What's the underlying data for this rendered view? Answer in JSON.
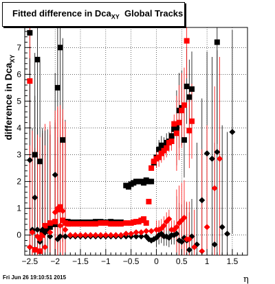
{
  "chart_data": {
    "type": "scatter",
    "title": "Fitted difference in Dca",
    "title_sub": "XY",
    "title_suffix": "Global Tracks",
    "ylabel": "difference in Dca",
    "ylabel_sub": "XY",
    "xlabel": "η",
    "xlim": [
      -2.6,
      1.8
    ],
    "ylim": [
      -0.75,
      7.75
    ],
    "grid": true,
    "x_ticks": [
      -2.5,
      -2,
      -1.5,
      -1,
      -0.5,
      0,
      0.5,
      1,
      1.5
    ],
    "x_tick_labels": [
      "−2.5",
      "−2",
      "−1.5",
      "−1",
      "−0.5",
      "0",
      "0.5",
      "1",
      "1.5"
    ],
    "y_ticks": [
      0,
      1,
      2,
      3,
      4,
      5,
      6,
      7
    ],
    "y_tick_labels": [
      "0",
      "1",
      "2",
      "3",
      "4",
      "5",
      "6",
      "7"
    ],
    "footer": "Fri Jun 26 19:10:51 2015",
    "series": [
      {
        "marker": "square",
        "color": "#000000",
        "x": [
          -2.5,
          -2.4,
          -2.35,
          -2.3,
          -2.25,
          -2.2,
          -2.1,
          -2.0,
          -1.95,
          -1.9,
          -1.85,
          -1.8,
          -1.75,
          -1.7,
          -1.6,
          -1.5,
          -1.4,
          -1.3,
          -1.2,
          -1.1,
          -1.0,
          -0.9,
          -0.8,
          -0.7,
          -0.6,
          -0.55,
          -0.5,
          -0.45,
          -0.4,
          -0.35,
          -0.3,
          -0.25,
          -0.2,
          -0.15,
          -0.1,
          -0.05,
          0.0,
          0.05,
          0.1,
          0.15,
          0.2,
          0.25,
          0.3,
          0.35,
          0.4,
          0.45,
          0.5,
          0.55,
          0.6,
          0.65,
          0.7,
          1.2
        ],
        "y": [
          7.55,
          3.0,
          6.55,
          2.75,
          0.1,
          0.15,
          0.3,
          0.4,
          5.5,
          7.0,
          3.55,
          0.5,
          0.5,
          0.48,
          0.48,
          0.48,
          0.48,
          0.48,
          0.5,
          0.5,
          0.48,
          0.5,
          0.48,
          0.48,
          1.85,
          1.8,
          1.9,
          1.95,
          2.0,
          2.0,
          2.0,
          1.95,
          2.05,
          2.0,
          2.0,
          2.7,
          2.9,
          3.2,
          3.35,
          3.3,
          3.45,
          3.5,
          3.7,
          3.95,
          4.0,
          4.65,
          4.75,
          3.55,
          5.55,
          5.15,
          5.45,
          7.2
        ]
      },
      {
        "marker": "square",
        "color": "#ff0000",
        "x": [
          -2.5,
          -2.4,
          -2.3,
          -2.25,
          -2.2,
          -2.1,
          -2.0,
          -1.95,
          -1.9,
          -1.85,
          -1.8,
          -1.75,
          -1.7,
          -1.6,
          -1.5,
          -1.4,
          -1.3,
          -1.2,
          -1.1,
          -1.0,
          -0.9,
          -0.8,
          -0.7,
          -0.6,
          -0.5,
          -0.45,
          -0.4,
          -0.35,
          -0.3,
          -0.25,
          -0.2,
          -0.15,
          -0.1,
          -0.05,
          0.0,
          0.05,
          0.1,
          0.15,
          0.2,
          0.25,
          0.3,
          0.35,
          0.4,
          0.45,
          0.5,
          0.55,
          0.6,
          0.65,
          0.7
        ],
        "y": [
          5.75,
          -0.55,
          -0.6,
          0.0,
          0.35,
          0.45,
          0.5,
          0.95,
          1.05,
          0.55,
          0.45,
          0.42,
          0.42,
          0.42,
          0.42,
          0.42,
          0.42,
          0.42,
          0.45,
          0.45,
          0.42,
          0.42,
          0.42,
          0.45,
          0.45,
          0.48,
          0.5,
          0.5,
          0.55,
          0.6,
          0.45,
          1.25,
          2.5,
          2.75,
          2.85,
          2.9,
          3.05,
          3.15,
          3.25,
          3.45,
          3.5,
          4.15,
          3.8,
          4.2,
          4.65,
          4.85,
          7.25,
          3.9,
          4.25
        ]
      },
      {
        "marker": "diamond",
        "color": "#000000",
        "x": [
          -2.5,
          -2.45,
          -2.4,
          -2.35,
          -2.3,
          -2.25,
          -2.2,
          -2.15,
          -2.1,
          -2.0,
          -1.95,
          -1.9,
          -1.8,
          -1.7,
          -1.6,
          -1.5,
          -1.4,
          -1.3,
          -1.2,
          -1.1,
          -1.0,
          -0.9,
          -0.8,
          -0.7,
          -0.6,
          -0.5,
          -0.4,
          -0.3,
          -0.2,
          -0.15,
          -0.1,
          -0.05,
          0.0,
          0.05,
          0.1,
          0.15,
          0.2,
          0.25,
          0.3,
          0.35,
          0.4,
          0.45,
          0.5,
          0.55,
          0.6,
          0.65,
          0.7,
          0.8,
          0.9,
          1.0,
          1.1,
          1.15,
          1.2,
          1.3,
          1.4,
          1.5
        ],
        "y": [
          2.8,
          0.2,
          1.4,
          0.2,
          -0.25,
          0.2,
          0.1,
          0.15,
          -0.05,
          2.25,
          -0.15,
          -0.05,
          -0.05,
          -0.05,
          -0.05,
          -0.05,
          -0.05,
          -0.05,
          -0.05,
          -0.05,
          -0.05,
          -0.05,
          -0.05,
          -0.05,
          -0.05,
          -0.05,
          -0.05,
          -0.05,
          -0.05,
          -0.15,
          -0.2,
          -0.15,
          -0.1,
          0.0,
          0.05,
          -0.05,
          -0.05,
          -0.1,
          0.0,
          0.0,
          0.05,
          -0.2,
          -0.25,
          -0.1,
          -0.2,
          -0.55,
          -0.05,
          -0.35,
          1.3,
          3.05,
          2.85,
          -0.35,
          3.1,
          0.3,
          0.05,
          3.85
        ]
      },
      {
        "marker": "diamond",
        "color": "#ff0000",
        "x": [
          -2.5,
          -2.45,
          -2.35,
          -2.3,
          -2.2,
          -2.1,
          -2.0,
          -1.95,
          -1.9,
          -1.85,
          -1.8,
          -1.7,
          -1.6,
          -1.5,
          -1.4,
          -1.3,
          -1.2,
          -1.1,
          -1.0,
          -0.9,
          -0.8,
          -0.7,
          -0.6,
          -0.5,
          -0.4,
          -0.3,
          -0.2,
          -0.1,
          0.0,
          0.05,
          0.1,
          0.15,
          0.2,
          0.25,
          0.3,
          0.35,
          0.4,
          0.45,
          0.5,
          0.55,
          0.6,
          0.65,
          0.75,
          0.9,
          1.0,
          1.15,
          1.25
        ],
        "y": [
          -0.45,
          0.1,
          -0.05,
          -0.15,
          -0.45,
          0.1,
          0.85,
          1.0,
          0.35,
          0.9,
          0.2,
          0.0,
          0.0,
          0.0,
          0.0,
          0.0,
          0.0,
          0.0,
          0.0,
          0.0,
          0.0,
          0.0,
          0.05,
          0.05,
          0.1,
          0.1,
          0.15,
          0.15,
          0.2,
          0.2,
          0.25,
          0.35,
          0.5,
          0.6,
          0.2,
          0.2,
          0.3,
          0.45,
          0.55,
          0.65,
          -0.15,
          -0.15,
          -0.45,
          -0.6,
          0.3,
          1.75,
          2.85
        ]
      }
    ]
  }
}
